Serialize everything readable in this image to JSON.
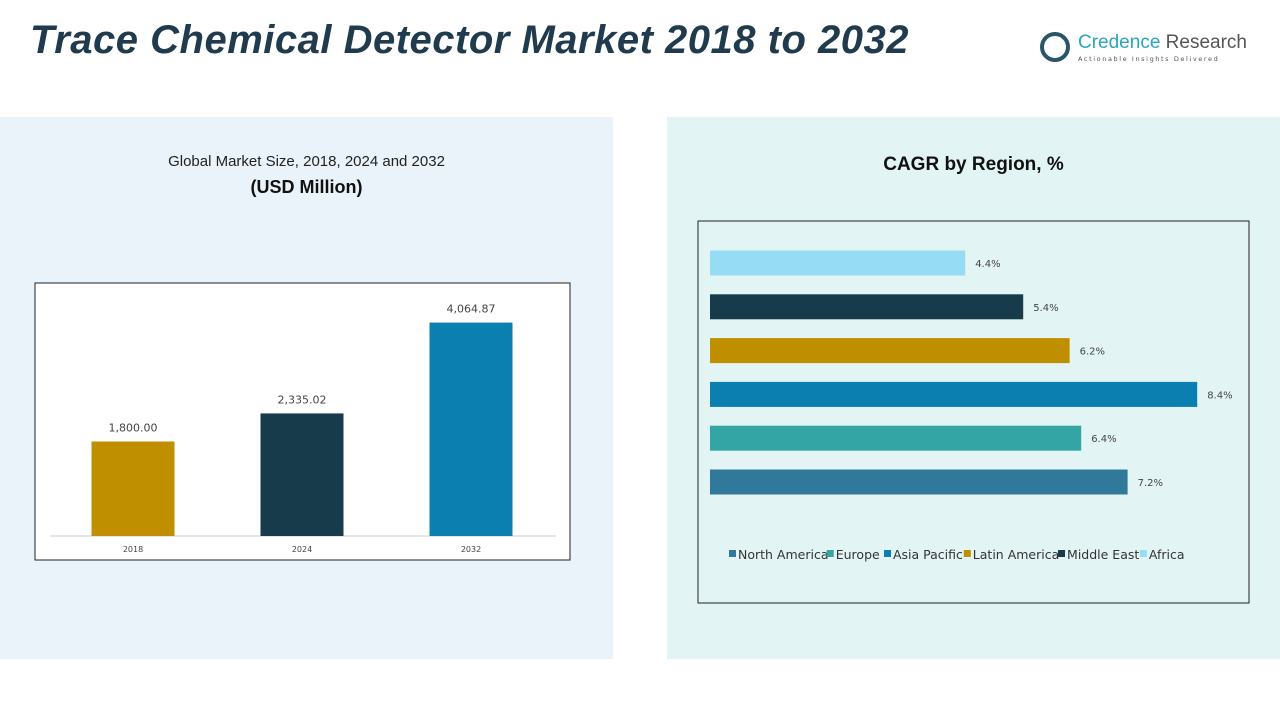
{
  "header": {
    "title": "Trace Chemical Detector Market 2018 to 2032"
  },
  "logo": {
    "name_part1": "Credence",
    "name_part2": " Research",
    "tagline": "Actionable Insights Delivered"
  },
  "chart_data": [
    {
      "type": "bar",
      "title": "Global Market Size, 2018, 2024 and 2032",
      "subtitle": "(USD Million)",
      "categories": [
        "2018",
        "2024",
        "2032"
      ],
      "values": [
        1800.0,
        2335.02,
        4064.87
      ],
      "labels": [
        "1,800.00",
        "2,335.02",
        "4,064.87"
      ],
      "colors": [
        "#bf8f00",
        "#173b4b",
        "#0a7fb0"
      ],
      "ylim": [
        0,
        4800
      ],
      "grid": false
    },
    {
      "type": "bar",
      "orientation": "horizontal",
      "title": "CAGR by Region, %",
      "categories": [
        "North America",
        "Europe",
        "Asia Pacific",
        "Latin America",
        "Middle East",
        "Africa"
      ],
      "values": [
        7.2,
        6.4,
        8.4,
        6.2,
        5.4,
        4.4
      ],
      "labels": [
        "7.2%",
        "6.4%",
        "8.4%",
        "6.2%",
        "5.4%",
        "4.4%"
      ],
      "colors": [
        "#31799a",
        "#34a5a5",
        "#0a7fb0",
        "#bf8f00",
        "#173b4b",
        "#97dcf5"
      ],
      "xlim": [
        0,
        8.4
      ],
      "legend": "bottom",
      "grid": false
    }
  ]
}
